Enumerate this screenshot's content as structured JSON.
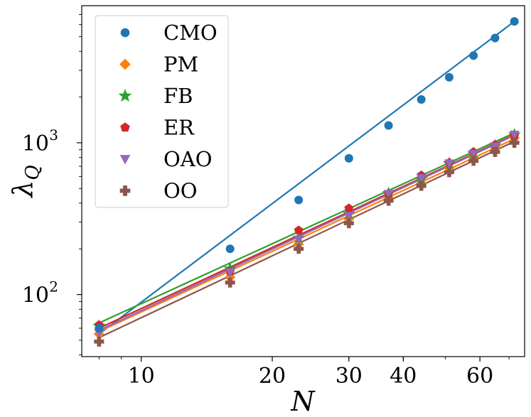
{
  "chart_data": {
    "type": "scatter",
    "xscale": "log",
    "yscale": "log",
    "xlabel": "N",
    "ylabel": "λ_Q",
    "xlim": [
      7.3,
      76
    ],
    "ylim": [
      39,
      8000
    ],
    "xticks": [
      {
        "value": 10,
        "label": "10"
      },
      {
        "value": 20,
        "label": "20"
      },
      {
        "value": 30,
        "label": "30"
      },
      {
        "value": 40,
        "label": "40"
      },
      {
        "value": 60,
        "label": "60"
      }
    ],
    "yticks": [
      {
        "value": 100,
        "base": "10",
        "exp": "2"
      },
      {
        "value": 1000,
        "base": "10",
        "exp": "3"
      }
    ],
    "legend_position": "top-left",
    "series": [
      {
        "name": "CMO",
        "color": "#1f77b4",
        "marker": "circle",
        "x": [
          8,
          16,
          23,
          30,
          37,
          44,
          51,
          58,
          65,
          72
        ],
        "y": [
          60,
          200,
          420,
          790,
          1300,
          1930,
          2700,
          3750,
          4900,
          6300
        ],
        "fit": {
          "x": [
            8,
            72
          ],
          "y": [
            55,
            6300
          ]
        }
      },
      {
        "name": "PM",
        "color": "#ff7f0e",
        "marker": "diamond",
        "x": [
          8,
          16,
          23,
          30,
          37,
          44,
          51,
          58,
          65,
          72
        ],
        "y": [
          55,
          130,
          215,
          315,
          435,
          540,
          680,
          800,
          930,
          1080
        ],
        "fit": {
          "x": [
            8,
            72
          ],
          "y": [
            57,
            1060
          ]
        }
      },
      {
        "name": "FB",
        "color": "#2ca02c",
        "marker": "star",
        "x": [
          8,
          16,
          23,
          30,
          37,
          44,
          51,
          58,
          65,
          72
        ],
        "y": [
          62,
          148,
          235,
          340,
          465,
          575,
          730,
          850,
          960,
          1130
        ],
        "fit": {
          "x": [
            8,
            72
          ],
          "y": [
            65,
            1160
          ]
        }
      },
      {
        "name": "ER",
        "color": "#d62728",
        "marker": "pentagon",
        "x": [
          8,
          16,
          23,
          30,
          37,
          44,
          51,
          58,
          65,
          72
        ],
        "y": [
          63,
          142,
          265,
          370,
          460,
          610,
          740,
          870,
          970,
          1110
        ],
        "fit": {
          "x": [
            8,
            72
          ],
          "y": [
            60,
            1130
          ]
        }
      },
      {
        "name": "OAO",
        "color": "#9467bd",
        "marker": "triangle-down",
        "x": [
          8,
          16,
          23,
          30,
          37,
          44,
          51,
          58,
          65,
          72
        ],
        "y": [
          56,
          140,
          230,
          330,
          460,
          585,
          730,
          845,
          945,
          1130
        ],
        "fit": {
          "x": [
            8,
            72
          ],
          "y": [
            58,
            1120
          ]
        }
      },
      {
        "name": "OO",
        "color": "#8c564b",
        "marker": "plus",
        "x": [
          8,
          16,
          23,
          30,
          37,
          44,
          51,
          58,
          65,
          72
        ],
        "y": [
          49,
          120,
          200,
          295,
          415,
          520,
          640,
          760,
          870,
          1000
        ],
        "fit": {
          "x": [
            8,
            72
          ],
          "y": [
            52,
            1020
          ]
        }
      }
    ]
  }
}
